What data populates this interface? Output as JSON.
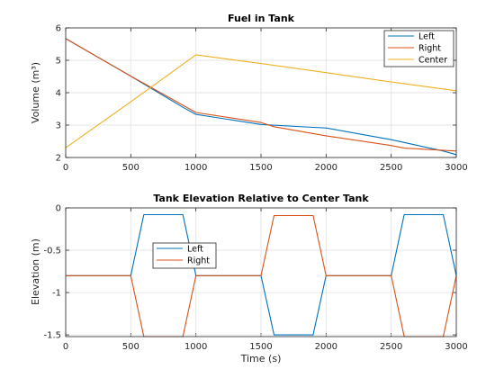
{
  "colors": {
    "Left": "#0072BD",
    "Right": "#D95319",
    "Center": "#EDB120"
  },
  "chart_data": [
    {
      "type": "line",
      "title": "Fuel in Tank",
      "xlabel": "",
      "ylabel": "Volume (m³)",
      "xlim": [
        0,
        3000
      ],
      "ylim": [
        2,
        6
      ],
      "xticks": [
        "0",
        "500",
        "1000",
        "1500",
        "2000",
        "2500",
        "3000"
      ],
      "yticks": [
        "2",
        "3",
        "4",
        "5",
        "6"
      ],
      "grid": true,
      "legend": "top-right",
      "series": [
        {
          "name": "Left",
          "x": [
            0,
            500,
            900,
            1000,
            1500,
            1900,
            2000,
            2500,
            2900,
            3000
          ],
          "y": [
            5.67,
            4.51,
            3.55,
            3.33,
            3.02,
            2.93,
            2.91,
            2.55,
            2.2,
            2.09
          ]
        },
        {
          "name": "Right",
          "x": [
            0,
            500,
            600,
            1000,
            1500,
            1600,
            2000,
            2500,
            2600,
            3000
          ],
          "y": [
            5.67,
            4.51,
            4.29,
            3.39,
            3.08,
            2.95,
            2.67,
            2.37,
            2.29,
            2.2
          ]
        },
        {
          "name": "Center",
          "x": [
            0,
            500,
            1000,
            1500,
            2000,
            2500,
            3000
          ],
          "y": [
            2.3,
            3.72,
            5.17,
            4.9,
            4.62,
            4.33,
            4.06
          ]
        }
      ]
    },
    {
      "type": "line",
      "title": "Tank Elevation Relative to Center Tank",
      "xlabel": "Time (s)",
      "ylabel": "Elevation (m)",
      "xlim": [
        0,
        3000
      ],
      "ylim": [
        -1.52,
        0
      ],
      "xticks": [
        "0",
        "500",
        "1000",
        "1500",
        "2000",
        "2500",
        "3000"
      ],
      "yticks": [
        "-1.5",
        "-1",
        "-0.5",
        "0"
      ],
      "ytick_values": [
        -1.5,
        -1,
        -0.5,
        0
      ],
      "grid": true,
      "legend": "upper-left",
      "series": [
        {
          "name": "Left",
          "x": [
            0,
            500,
            600,
            900,
            1000,
            1500,
            1600,
            1900,
            2000,
            2500,
            2600,
            2900,
            3000
          ],
          "y": [
            -0.8,
            -0.8,
            -0.08,
            -0.08,
            -0.8,
            -0.8,
            -1.5,
            -1.5,
            -0.8,
            -0.8,
            -0.08,
            -0.08,
            -0.8
          ]
        },
        {
          "name": "Right",
          "x": [
            0,
            500,
            600,
            900,
            1000,
            1500,
            1600,
            1900,
            2000,
            2500,
            2600,
            2900,
            3000
          ],
          "y": [
            -0.8,
            -0.8,
            -1.52,
            -1.52,
            -0.8,
            -0.8,
            -0.09,
            -0.09,
            -0.8,
            -0.8,
            -1.52,
            -1.52,
            -0.8
          ]
        }
      ]
    }
  ]
}
